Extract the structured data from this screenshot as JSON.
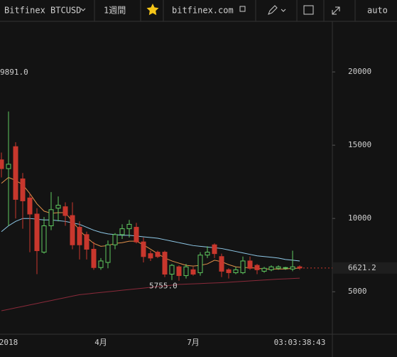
{
  "toolbar": {
    "symbol": "Bitfinex BTCUSD",
    "interval": "1週間",
    "site": "bitfinex.com",
    "scale": "auto"
  },
  "chart_data": {
    "type": "candlestick",
    "categories": [
      null,
      "2018",
      null,
      null,
      null,
      null,
      null,
      null,
      null,
      null,
      null,
      null,
      null,
      null,
      "4月",
      null,
      null,
      null,
      null,
      null,
      null,
      null,
      null,
      null,
      null,
      null,
      null,
      "7月",
      null,
      null,
      null,
      null,
      null,
      null,
      null,
      null,
      null,
      null,
      null,
      null,
      null,
      null,
      null
    ],
    "open": [
      14000,
      13400,
      14900,
      12700,
      11400,
      10300,
      7700,
      9500,
      10700,
      10800,
      10200,
      9400,
      8900,
      7900,
      6650,
      7000,
      8200,
      8900,
      9300,
      9400,
      8400,
      7600,
      7700,
      7700,
      6200,
      6700,
      6100,
      6500,
      6300,
      7500,
      8200,
      7400,
      6500,
      6300,
      6300,
      7100,
      6800,
      6400,
      6500,
      6600,
      6600,
      6550,
      6700
    ],
    "high": [
      14500,
      17300,
      15200,
      13100,
      11700,
      10700,
      10100,
      11800,
      11500,
      11100,
      11100,
      9800,
      9100,
      8400,
      7300,
      8500,
      9000,
      9600,
      9900,
      9700,
      8700,
      7800,
      7800,
      7800,
      6900,
      6800,
      6900,
      6700,
      7700,
      8100,
      8300,
      7600,
      6600,
      6700,
      7400,
      7400,
      6900,
      6700,
      6800,
      6800,
      6700,
      7800,
      6800
    ],
    "low": [
      12800,
      9500,
      10000,
      9300,
      7700,
      6200,
      7600,
      9200,
      9800,
      9500,
      7900,
      7200,
      7200,
      6500,
      6500,
      6600,
      7900,
      8600,
      8700,
      8300,
      7000,
      7100,
      7300,
      6000,
      5800,
      5755,
      5900,
      6100,
      6100,
      7300,
      7300,
      6000,
      5900,
      6200,
      6200,
      6500,
      6200,
      6300,
      6400,
      6500,
      6500,
      6400,
      6500
    ],
    "close": [
      13400,
      13700,
      11300,
      11200,
      10300,
      7800,
      9500,
      10600,
      10900,
      10200,
      8200,
      8200,
      7900,
      6650,
      7100,
      8200,
      8900,
      9300,
      9600,
      8400,
      7400,
      7300,
      7400,
      6200,
      6800,
      6100,
      6700,
      6200,
      7500,
      7700,
      7600,
      6400,
      6300,
      6500,
      7100,
      6600,
      6500,
      6600,
      6700,
      6700,
      6650,
      6700,
      6621.2
    ],
    "up_color": "#5fc95f",
    "down_color": "#c8372d",
    "series": [
      {
        "color": "#8fc9e8",
        "values": [
          9100,
          9500,
          9800,
          10000,
          10000,
          9950,
          9900,
          9900,
          9850,
          9800,
          9700,
          9600,
          9400,
          9200,
          9050,
          8950,
          8900,
          8850,
          8850,
          8800,
          8750,
          8700,
          8650,
          8550,
          8450,
          8350,
          8250,
          8150,
          8100,
          8050,
          8000,
          7950,
          7850,
          7750,
          7650,
          7550,
          7450,
          7400,
          7350,
          7300,
          7200,
          7150,
          7100
        ]
      },
      {
        "color": "#e0904a",
        "values": [
          12400,
          12800,
          12600,
          12300,
          11700,
          11000,
          10500,
          10350,
          10400,
          10400,
          9800,
          9200,
          8700,
          8300,
          8100,
          8150,
          8300,
          8350,
          8450,
          8450,
          8200,
          7900,
          7600,
          7300,
          7100,
          6950,
          6800,
          6750,
          6800,
          6900,
          7150,
          7050,
          6850,
          6700,
          6650,
          6650,
          6600,
          6550,
          6550,
          6550,
          6550,
          6600,
          6600
        ]
      },
      {
        "color": "#8a2a3a",
        "values": [
          3700,
          3800,
          3900,
          4000,
          4100,
          4200,
          4300,
          4400,
          4500,
          4600,
          4700,
          4800,
          4850,
          4900,
          4950,
          5000,
          5050,
          5100,
          5150,
          5200,
          5250,
          5300,
          5350,
          5400,
          5450,
          5500,
          5520,
          5540,
          5560,
          5580,
          5600,
          5620,
          5650,
          5680,
          5710,
          5740,
          5770,
          5800,
          5830,
          5860,
          5880,
          5900,
          5930
        ]
      }
    ],
    "ylim": [
      2100,
      23450
    ],
    "yticks": [
      5000,
      10000,
      15000,
      20000
    ],
    "high_label": "9891.0",
    "low_label": "5755.0",
    "countdown": "03:03:38:43"
  }
}
